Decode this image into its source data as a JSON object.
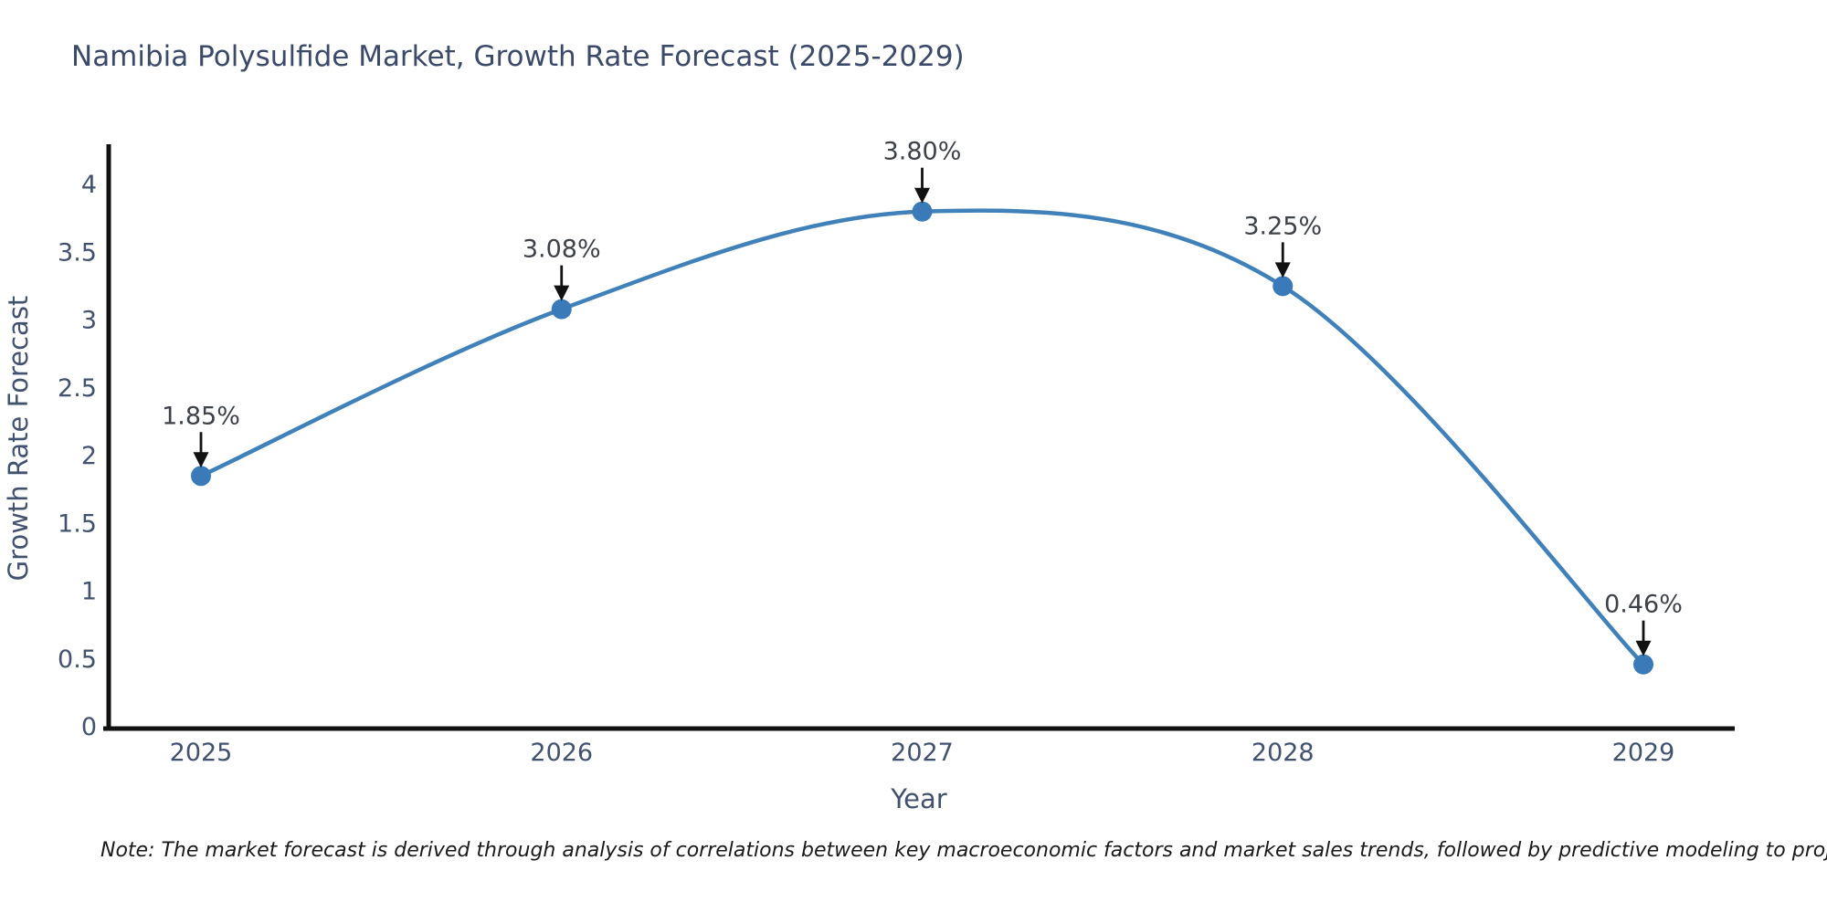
{
  "page": {
    "title": "Namibia Polysulfide Market, Growth Rate Forecast (2025-2029)",
    "note": "Note: The market forecast is derived through analysis of correlations between key macroeconomic factors and market sales trends, followed by predictive modeling to project future sales"
  },
  "chart_data": {
    "type": "line",
    "line_shape": "spline",
    "title": "Namibia Polysulfide Market, Growth Rate Forecast (2025-2029)",
    "xlabel": "Year",
    "ylabel": "Growth Rate Forecast",
    "categories": [
      "2025",
      "2026",
      "2027",
      "2028",
      "2029"
    ],
    "values": [
      1.85,
      3.08,
      3.8,
      3.25,
      0.46
    ],
    "point_labels": [
      "1.85%",
      "3.08%",
      "3.80%",
      "3.25%",
      "0.46%"
    ],
    "ytick_labels": [
      "0",
      "0.5",
      "1",
      "1.5",
      "2",
      "2.5",
      "3",
      "3.5",
      "4"
    ],
    "ytick_values": [
      0,
      0.5,
      1,
      1.5,
      2,
      2.5,
      3,
      3.5,
      4
    ],
    "ylim": [
      0,
      4.3
    ],
    "grid": false,
    "legend": "none",
    "annotation_style": "label-with-down-arrow",
    "colors": {
      "line": "#4181b9",
      "marker": "#3a7ab8",
      "arrow": "#111111",
      "axis": "#111111",
      "tick_text": "#42526e",
      "axis_title_text": "#42526e",
      "title_text": "#3b4a68",
      "annotation_text": "#3d4148"
    }
  }
}
